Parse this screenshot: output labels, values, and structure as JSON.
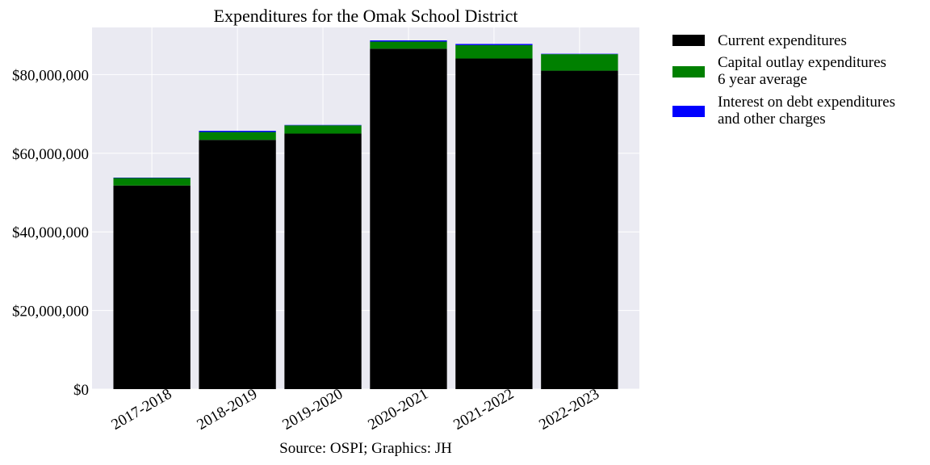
{
  "chart_data": {
    "type": "bar",
    "stacked": true,
    "title": "Expenditures for the Omak School District",
    "source": "Source: OSPI; Graphics: JH",
    "categories": [
      "2017-2018",
      "2018-2019",
      "2019-2020",
      "2020-2021",
      "2021-2022",
      "2022-2023"
    ],
    "series": [
      {
        "name": "Current expenditures",
        "color": "#000000",
        "values": [
          51800000,
          63400000,
          65000000,
          86600000,
          84100000,
          81000000
        ]
      },
      {
        "name": "Capital outlay expenditures\n6 year average",
        "color": "#008000",
        "values": [
          1900000,
          2000000,
          2100000,
          1800000,
          3400000,
          4200000
        ]
      },
      {
        "name": "Interest on debt expenditures\nand other charges",
        "color": "#0000ff",
        "values": [
          100000,
          300000,
          100000,
          300000,
          300000,
          100000
        ]
      }
    ],
    "ylim": [
      0,
      92000000
    ],
    "yticks": [
      0,
      20000000,
      40000000,
      60000000,
      80000000
    ],
    "ytick_labels": [
      "$0",
      "$20,000,000",
      "$40,000,000",
      "$60,000,000",
      "$80,000,000"
    ],
    "grid": true,
    "legend_position": "outside-right"
  }
}
